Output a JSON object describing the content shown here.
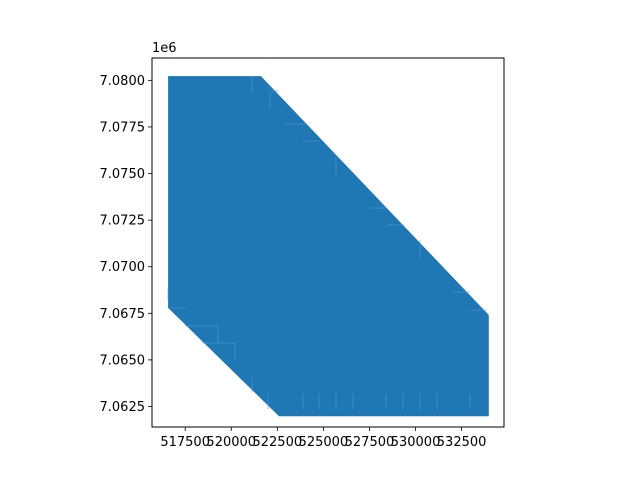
{
  "chart_data": {
    "type": "area",
    "title": "",
    "xlabel": "",
    "ylabel": "",
    "y_offset_label": "1e6",
    "fill_color": "#1f77b4",
    "grid": false,
    "xlim": [
      515700,
      534800
    ],
    "ylim": [
      7061400,
      7081200
    ],
    "x_ticks": [
      517500,
      520000,
      522500,
      525000,
      527500,
      530000,
      532500
    ],
    "x_tick_labels": [
      "517500",
      "520000",
      "522500",
      "525000",
      "527500",
      "530000",
      "532500"
    ],
    "y_ticks": [
      7062500,
      7065000,
      7067500,
      7070000,
      7072500,
      7075000,
      7077500,
      7080000
    ],
    "y_tick_labels": [
      "7.0625",
      "7.0650",
      "7.0675",
      "7.0700",
      "7.0725",
      "7.0750",
      "7.0775",
      "7.0800"
    ],
    "polygon": [
      {
        "x": 516600,
        "y": 7080200
      },
      {
        "x": 521600,
        "y": 7080200
      },
      {
        "x": 533950,
        "y": 7067400
      },
      {
        "x": 533950,
        "y": 7062000
      },
      {
        "x": 522600,
        "y": 7062000
      },
      {
        "x": 516600,
        "y": 7067800
      }
    ]
  }
}
